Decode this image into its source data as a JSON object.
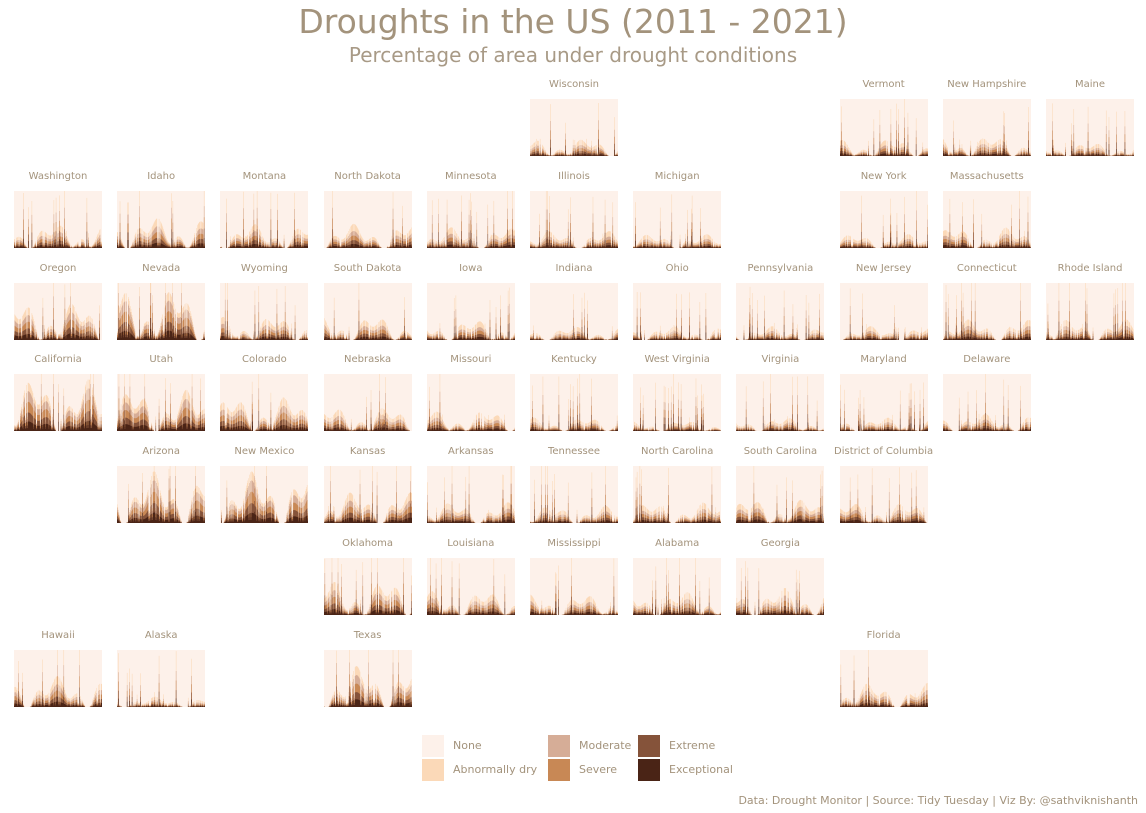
{
  "title": "Droughts in the US (2011 - 2021)",
  "subtitle": "Percentage of area under drought conditions",
  "caption": "Data: Drought Monitor | Source: Tidy Tuesday | Viz By: @sathviknishanth",
  "colors": {
    "background": "#ffffff",
    "none": "#fdf1ea",
    "abnormally_dry": "#fbd9b8",
    "moderate": "#d6ad97",
    "severe": "#c88855",
    "extreme": "#85533a",
    "exceptional": "#4a2416"
  },
  "legend": [
    {
      "label": "None",
      "color": "#fdf1ea"
    },
    {
      "label": "Abnormally dry",
      "color": "#fbd9b8"
    },
    {
      "label": "Moderate",
      "color": "#d6ad97"
    },
    {
      "label": "Severe",
      "color": "#c88855"
    },
    {
      "label": "Extreme",
      "color": "#85533a"
    },
    {
      "label": "Exceptional",
      "color": "#4a2416"
    }
  ],
  "chart_data": {
    "type": "area",
    "layout": "small-multiples-geofacet",
    "x_range": [
      "2011",
      "2021"
    ],
    "y_range": [
      0,
      100
    ],
    "y_unit": "percent of area",
    "categories": [
      "None",
      "Abnormally dry",
      "Moderate",
      "Severe",
      "Extreme",
      "Exceptional"
    ],
    "states": [
      {
        "name": "Wisconsin",
        "row": 0,
        "col": 5,
        "intensity": 0.25
      },
      {
        "name": "Vermont",
        "row": 0,
        "col": 8,
        "intensity": 0.25
      },
      {
        "name": "New Hampshire",
        "row": 0,
        "col": 9,
        "intensity": 0.3
      },
      {
        "name": "Maine",
        "row": 0,
        "col": 10,
        "intensity": 0.2
      },
      {
        "name": "Washington",
        "row": 1,
        "col": 0,
        "intensity": 0.35
      },
      {
        "name": "Idaho",
        "row": 1,
        "col": 1,
        "intensity": 0.45
      },
      {
        "name": "Montana",
        "row": 1,
        "col": 2,
        "intensity": 0.35
      },
      {
        "name": "North Dakota",
        "row": 1,
        "col": 3,
        "intensity": 0.35
      },
      {
        "name": "Minnesota",
        "row": 1,
        "col": 4,
        "intensity": 0.3
      },
      {
        "name": "Illinois",
        "row": 1,
        "col": 5,
        "intensity": 0.25
      },
      {
        "name": "Michigan",
        "row": 1,
        "col": 6,
        "intensity": 0.2
      },
      {
        "name": "New York",
        "row": 1,
        "col": 8,
        "intensity": 0.2
      },
      {
        "name": "Massachusetts",
        "row": 1,
        "col": 9,
        "intensity": 0.3
      },
      {
        "name": "Oregon",
        "row": 2,
        "col": 0,
        "intensity": 0.55
      },
      {
        "name": "Nevada",
        "row": 2,
        "col": 1,
        "intensity": 0.75
      },
      {
        "name": "Wyoming",
        "row": 2,
        "col": 2,
        "intensity": 0.35
      },
      {
        "name": "South Dakota",
        "row": 2,
        "col": 3,
        "intensity": 0.35
      },
      {
        "name": "Iowa",
        "row": 2,
        "col": 4,
        "intensity": 0.3
      },
      {
        "name": "Indiana",
        "row": 2,
        "col": 5,
        "intensity": 0.2
      },
      {
        "name": "Ohio",
        "row": 2,
        "col": 6,
        "intensity": 0.2
      },
      {
        "name": "Pennsylvania",
        "row": 2,
        "col": 7,
        "intensity": 0.2
      },
      {
        "name": "New Jersey",
        "row": 2,
        "col": 8,
        "intensity": 0.2
      },
      {
        "name": "Connecticut",
        "row": 2,
        "col": 9,
        "intensity": 0.3
      },
      {
        "name": "Rhode Island",
        "row": 2,
        "col": 10,
        "intensity": 0.3
      },
      {
        "name": "California",
        "row": 3,
        "col": 0,
        "intensity": 0.75
      },
      {
        "name": "Utah",
        "row": 3,
        "col": 1,
        "intensity": 0.6
      },
      {
        "name": "Colorado",
        "row": 3,
        "col": 2,
        "intensity": 0.5
      },
      {
        "name": "Nebraska",
        "row": 3,
        "col": 3,
        "intensity": 0.35
      },
      {
        "name": "Missouri",
        "row": 3,
        "col": 4,
        "intensity": 0.3
      },
      {
        "name": "Kentucky",
        "row": 3,
        "col": 5,
        "intensity": 0.2
      },
      {
        "name": "West Virginia",
        "row": 3,
        "col": 6,
        "intensity": 0.15
      },
      {
        "name": "Virginia",
        "row": 3,
        "col": 7,
        "intensity": 0.2
      },
      {
        "name": "Maryland",
        "row": 3,
        "col": 8,
        "intensity": 0.2
      },
      {
        "name": "Delaware",
        "row": 3,
        "col": 9,
        "intensity": 0.25
      },
      {
        "name": "Arizona",
        "row": 4,
        "col": 1,
        "intensity": 0.75
      },
      {
        "name": "New Mexico",
        "row": 4,
        "col": 2,
        "intensity": 0.75
      },
      {
        "name": "Kansas",
        "row": 4,
        "col": 3,
        "intensity": 0.45
      },
      {
        "name": "Arkansas",
        "row": 4,
        "col": 4,
        "intensity": 0.3
      },
      {
        "name": "Tennessee",
        "row": 4,
        "col": 5,
        "intensity": 0.25
      },
      {
        "name": "North Carolina",
        "row": 4,
        "col": 6,
        "intensity": 0.3
      },
      {
        "name": "South Carolina",
        "row": 4,
        "col": 7,
        "intensity": 0.35
      },
      {
        "name": "District of Columbia",
        "row": 4,
        "col": 8,
        "intensity": 0.3
      },
      {
        "name": "Oklahoma",
        "row": 5,
        "col": 3,
        "intensity": 0.5
      },
      {
        "name": "Louisiana",
        "row": 5,
        "col": 4,
        "intensity": 0.35
      },
      {
        "name": "Mississippi",
        "row": 5,
        "col": 5,
        "intensity": 0.3
      },
      {
        "name": "Alabama",
        "row": 5,
        "col": 6,
        "intensity": 0.35
      },
      {
        "name": "Georgia",
        "row": 5,
        "col": 7,
        "intensity": 0.4
      },
      {
        "name": "Hawaii",
        "row": 6,
        "col": 0,
        "intensity": 0.45
      },
      {
        "name": "Alaska",
        "row": 6,
        "col": 1,
        "intensity": 0.15
      },
      {
        "name": "Texas",
        "row": 6,
        "col": 3,
        "intensity": 0.6
      },
      {
        "name": "Florida",
        "row": 6,
        "col": 8,
        "intensity": 0.35
      }
    ]
  }
}
